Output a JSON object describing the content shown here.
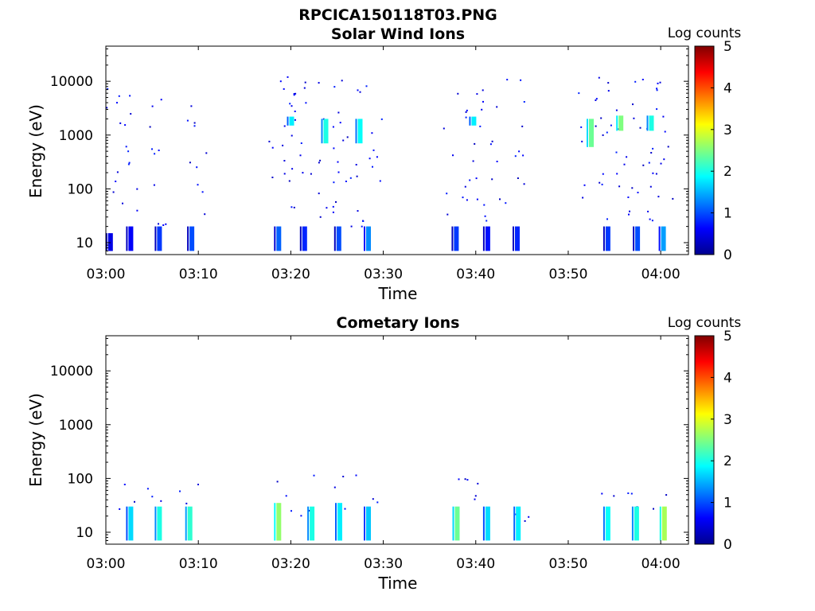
{
  "figure": {
    "filename": "RPCICA150118T03.PNG"
  },
  "chart_data": [
    {
      "type": "heatmap",
      "title": "Solar Wind Ions",
      "xlabel": "Time",
      "ylabel": "Energy (eV)",
      "y_scale": "log",
      "ylim": [
        6,
        45000
      ],
      "xlim": [
        "03:00",
        "04:03"
      ],
      "x_ticks": [
        "03:00",
        "03:10",
        "03:20",
        "03:30",
        "03:40",
        "03:50",
        "04:00"
      ],
      "y_ticks": [
        "10",
        "100",
        "1000",
        "10000"
      ],
      "colorbar": {
        "label": "Log counts",
        "range": [
          0,
          5
        ],
        "ticks": [
          "0",
          "1",
          "2",
          "3",
          "4",
          "5"
        ],
        "colormap": "jet"
      },
      "features": [
        {
          "time": "03:00.5",
          "energy_low": 7,
          "energy_high": 15,
          "log_counts": 0.5
        },
        {
          "time": "03:02.7",
          "energy_low": 7,
          "energy_high": 20,
          "log_counts": 0.6
        },
        {
          "time": "03:05.8",
          "energy_low": 7,
          "energy_high": 20,
          "log_counts": 0.9
        },
        {
          "time": "03:09.3",
          "energy_low": 7,
          "energy_high": 20,
          "log_counts": 1.0
        },
        {
          "time": "03:18.7",
          "energy_low": 7,
          "energy_high": 20,
          "log_counts": 1.1
        },
        {
          "time": "03:21.5",
          "energy_low": 7,
          "energy_high": 20,
          "log_counts": 0.8
        },
        {
          "time": "03:25.2",
          "energy_low": 7,
          "energy_high": 20,
          "log_counts": 1.0
        },
        {
          "time": "03:28.4",
          "energy_low": 7,
          "energy_high": 20,
          "log_counts": 1.3
        },
        {
          "time": "03:37.9",
          "energy_low": 7,
          "energy_high": 20,
          "log_counts": 0.9
        },
        {
          "time": "03:41.3",
          "energy_low": 7,
          "energy_high": 20,
          "log_counts": 0.7
        },
        {
          "time": "03:44.5",
          "energy_low": 7,
          "energy_high": 20,
          "log_counts": 0.8
        },
        {
          "time": "03:54.3",
          "energy_low": 7,
          "energy_high": 20,
          "log_counts": 0.9
        },
        {
          "time": "03:57.5",
          "energy_low": 7,
          "energy_high": 20,
          "log_counts": 1.0
        },
        {
          "time": "04:00.3",
          "energy_low": 7,
          "energy_high": 20,
          "log_counts": 1.4
        },
        {
          "time": "03:20.1",
          "energy_low": 1500,
          "energy_high": 2200,
          "log_counts": 1.8
        },
        {
          "time": "03:23.8",
          "energy_low": 700,
          "energy_high": 2000,
          "log_counts": 2.0
        },
        {
          "time": "03:27.5",
          "energy_low": 700,
          "energy_high": 2000,
          "log_counts": 1.9
        },
        {
          "time": "03:39.8",
          "energy_low": 1500,
          "energy_high": 2200,
          "log_counts": 1.8
        },
        {
          "time": "03:52.5",
          "energy_low": 600,
          "energy_high": 2000,
          "log_counts": 2.4
        },
        {
          "time": "03:55.7",
          "energy_low": 1200,
          "energy_high": 2300,
          "log_counts": 2.5
        },
        {
          "time": "03:59.0",
          "energy_low": 1200,
          "energy_high": 2300,
          "log_counts": 2.0
        }
      ]
    },
    {
      "type": "heatmap",
      "title": "Cometary Ions",
      "xlabel": "Time",
      "ylabel": "Energy (eV)",
      "y_scale": "log",
      "ylim": [
        6,
        45000
      ],
      "xlim": [
        "03:00",
        "04:03"
      ],
      "x_ticks": [
        "03:00",
        "03:10",
        "03:20",
        "03:30",
        "03:40",
        "03:50",
        "04:00"
      ],
      "y_ticks": [
        "10",
        "100",
        "1000",
        "10000"
      ],
      "colorbar": {
        "label": "Log counts",
        "range": [
          0,
          5
        ],
        "ticks": [
          "0",
          "1",
          "2",
          "3",
          "4",
          "5"
        ],
        "colormap": "jet"
      },
      "features": [
        {
          "time": "03:02.7",
          "energy_low": 7,
          "energy_high": 30,
          "log_counts": 1.7
        },
        {
          "time": "03:05.8",
          "energy_low": 7,
          "energy_high": 30,
          "log_counts": 2.0
        },
        {
          "time": "03:09.1",
          "energy_low": 7,
          "energy_high": 30,
          "log_counts": 2.1
        },
        {
          "time": "03:18.7",
          "energy_low": 7,
          "energy_high": 35,
          "log_counts": 2.6
        },
        {
          "time": "03:22.3",
          "energy_low": 7,
          "energy_high": 30,
          "log_counts": 2.0
        },
        {
          "time": "03:25.3",
          "energy_low": 7,
          "energy_high": 35,
          "log_counts": 1.8
        },
        {
          "time": "03:28.4",
          "energy_low": 7,
          "energy_high": 30,
          "log_counts": 1.6
        },
        {
          "time": "03:38.0",
          "energy_low": 7,
          "energy_high": 30,
          "log_counts": 2.4
        },
        {
          "time": "03:41.3",
          "energy_low": 7,
          "energy_high": 30,
          "log_counts": 1.7
        },
        {
          "time": "03:44.6",
          "energy_low": 7,
          "energy_high": 30,
          "log_counts": 1.8
        },
        {
          "time": "03:54.3",
          "energy_low": 7,
          "energy_high": 30,
          "log_counts": 1.9
        },
        {
          "time": "03:57.4",
          "energy_low": 7,
          "energy_high": 30,
          "log_counts": 2.0
        },
        {
          "time": "04:00.4",
          "energy_low": 7,
          "energy_high": 30,
          "log_counts": 2.7
        }
      ]
    }
  ]
}
